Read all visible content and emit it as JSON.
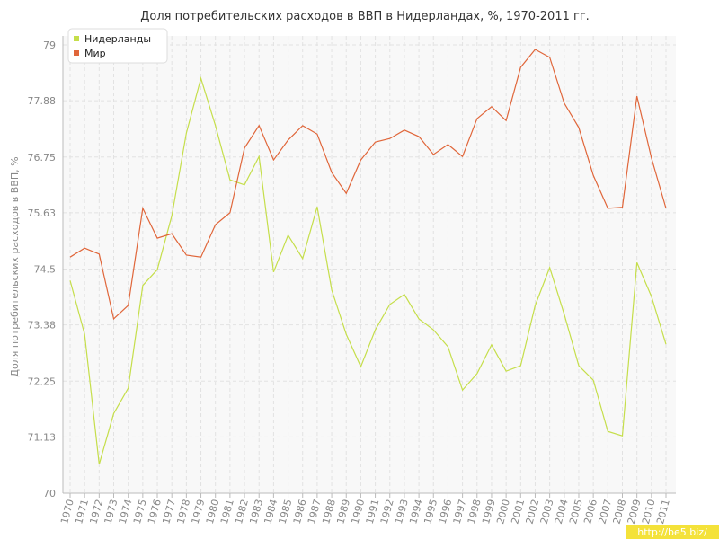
{
  "chart_data": {
    "type": "line",
    "title": "Доля потребительских расходов в ВВП в Нидерландах, %, 1970-2011 гг.",
    "y_label": "Доля потребительских расходов в ВВП, %",
    "watermark": "http://be5.biz/",
    "categories": [
      "1970",
      "1971",
      "1972",
      "1973",
      "1974",
      "1975",
      "1976",
      "1977",
      "1978",
      "1979",
      "1980",
      "1981",
      "1982",
      "1983",
      "1984",
      "1985",
      "1986",
      "1987",
      "1988",
      "1989",
      "1990",
      "1991",
      "1992",
      "1993",
      "1994",
      "1995",
      "1996",
      "1997",
      "1998",
      "1999",
      "2000",
      "2001",
      "2002",
      "2003",
      "2004",
      "2005",
      "2006",
      "2007",
      "2008",
      "2009",
      "2010",
      "2011"
    ],
    "series": [
      {
        "name": "Нидерланды",
        "color": "#c5de4a",
        "values": [
          74.27,
          73.19,
          70.58,
          71.6,
          72.11,
          74.17,
          74.49,
          75.57,
          77.23,
          78.33,
          77.38,
          76.29,
          76.19,
          76.76,
          74.44,
          75.18,
          74.71,
          75.75,
          74.08,
          73.19,
          72.54,
          73.28,
          73.79,
          73.99,
          73.5,
          73.28,
          72.94,
          72.07,
          72.4,
          72.98,
          72.45,
          72.56,
          73.77,
          74.53,
          73.59,
          72.56,
          72.27,
          71.24,
          71.15,
          74.63,
          73.95,
          72.99
        ]
      },
      {
        "name": "Мир",
        "color": "#e0663a",
        "values": [
          74.74,
          74.92,
          74.8,
          73.5,
          73.77,
          75.72,
          75.12,
          75.21,
          74.78,
          74.74,
          75.39,
          75.63,
          76.93,
          77.38,
          76.69,
          77.09,
          77.38,
          77.21,
          76.44,
          76.02,
          76.69,
          77.05,
          77.12,
          77.29,
          77.16,
          76.8,
          77.0,
          76.76,
          77.52,
          77.76,
          77.48,
          78.55,
          78.91,
          78.75,
          77.83,
          77.34,
          76.38,
          75.72,
          75.74,
          77.97,
          76.73,
          75.72
        ]
      }
    ],
    "ylim": [
      70,
      79
    ],
    "yticks": [
      70,
      71.13,
      72.25,
      73.38,
      74.5,
      75.63,
      76.75,
      77.88,
      79
    ],
    "grid": true,
    "legend": "top-left"
  }
}
